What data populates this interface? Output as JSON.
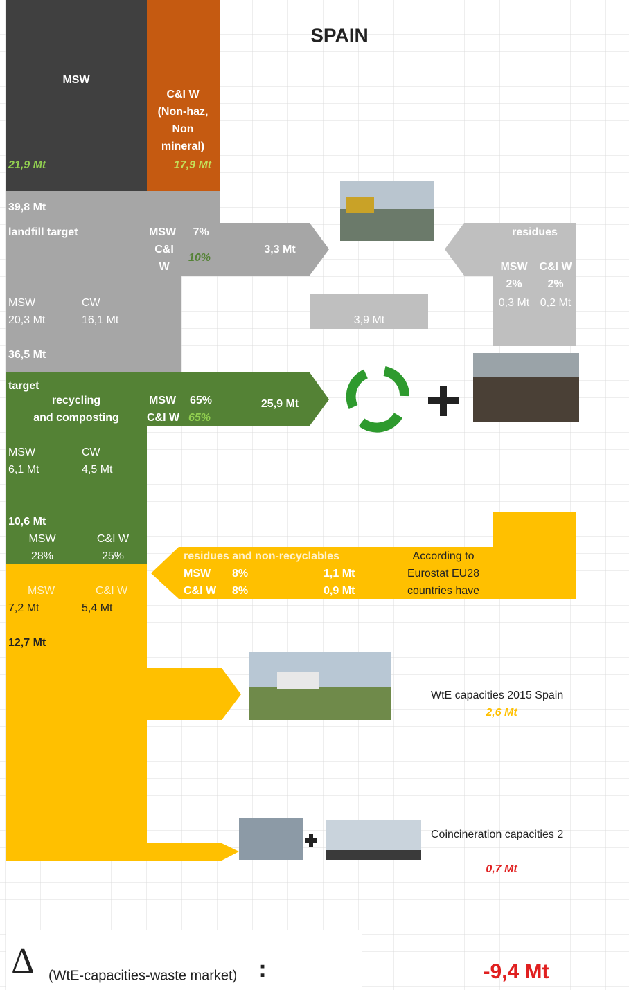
{
  "title": "SPAIN",
  "msw_block": {
    "label": "MSW",
    "amount": "21,9 Mt"
  },
  "ciw_block": {
    "label_lines": [
      "C&I W",
      "(Non-haz,",
      "Non",
      "mineral)"
    ],
    "amount": "17,9 Mt"
  },
  "landfill": {
    "total": "39,8 Mt",
    "target_label": "landfill target",
    "msw_label": "MSW",
    "msw_pct": "7%",
    "ciw_label_lines": [
      "C&I",
      "W"
    ],
    "ciw_pct": "10%",
    "arrow_amount": "3,3 Mt",
    "split_labels": [
      "MSW",
      "CW"
    ],
    "split_amounts": [
      "20,3 Mt",
      "16,1 Mt"
    ],
    "remaining": "36,5 Mt",
    "combined_amount": "3,9 Mt"
  },
  "residues": {
    "label": "residues",
    "headers": [
      "MSW",
      "C&I W"
    ],
    "pcts": [
      "2%",
      "2%"
    ],
    "amounts": [
      "0,3 Mt",
      "0,2 Mt"
    ]
  },
  "recycling": {
    "lines": [
      "target",
      "recycling",
      "and composting"
    ],
    "msw_label": "MSW",
    "msw_pct": "65%",
    "ciw_label": "C&I W",
    "ciw_pct": "65%",
    "arrow_amount": "25,9 Mt",
    "split_labels": [
      "MSW",
      "CW"
    ],
    "split_amounts": [
      "6,1 Mt",
      "4,5 Mt"
    ],
    "total": "10,6 Mt",
    "share_labels": [
      "MSW",
      "C&I W"
    ],
    "share_pcts": [
      "28%",
      "25%"
    ]
  },
  "non_recyclables": {
    "label": "residues and non-recyclables",
    "rows": [
      [
        "MSW",
        "8%",
        "1,1 Mt"
      ],
      [
        "C&I W",
        "8%",
        "0,9 Mt"
      ]
    ],
    "note_lines": [
      "According to",
      "Eurostat EU28",
      "countries have"
    ]
  },
  "incineration_input": {
    "labels": [
      "MSW",
      "C&I W"
    ],
    "amounts": [
      "7,2 Mt",
      "5,4 Mt"
    ],
    "total": "12,7 Mt"
  },
  "wte": {
    "label": "WtE capacities 2015 Spain",
    "amount": "2,6 Mt"
  },
  "coincineration": {
    "label": "Coincineration capacities 2",
    "amount": "0,7 Mt"
  },
  "balance": {
    "symbol": "Δ",
    "label": "(WtE-capacities-waste market)",
    "separator": ":",
    "amount": "-9,4 Mt"
  }
}
